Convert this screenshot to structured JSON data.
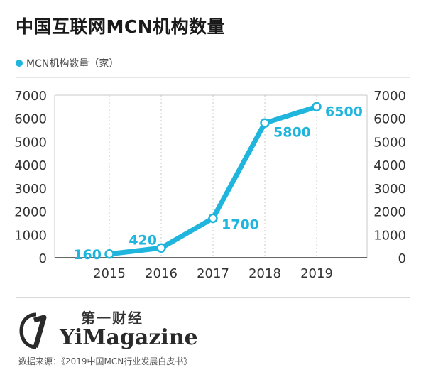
{
  "title": "中国互联网MCN机构数量",
  "legend_label": "MCN机构数量（家）",
  "brand": {
    "cn": "第一财经",
    "en": "YiMagazine",
    "icon": "yicai-logo-icon"
  },
  "source": "数据来源：《2019中国MCN行业发展白皮书》",
  "colors": {
    "accent": "#1fb5dd",
    "grid": "#c9c9c9",
    "axis": "#333333"
  },
  "chart_data": {
    "type": "line",
    "categories": [
      "2015",
      "2016",
      "2017",
      "2018",
      "2019"
    ],
    "series": [
      {
        "name": "MCN机构数量（家）",
        "values": [
          160,
          420,
          1700,
          5800,
          6500
        ]
      }
    ],
    "data_labels": [
      "160",
      "420",
      "1700",
      "5800",
      "6500"
    ],
    "ylim": [
      0,
      7000
    ],
    "yticks": [
      0,
      1000,
      2000,
      3000,
      4000,
      5000,
      6000,
      7000
    ],
    "right_axis": true,
    "grid": true
  }
}
